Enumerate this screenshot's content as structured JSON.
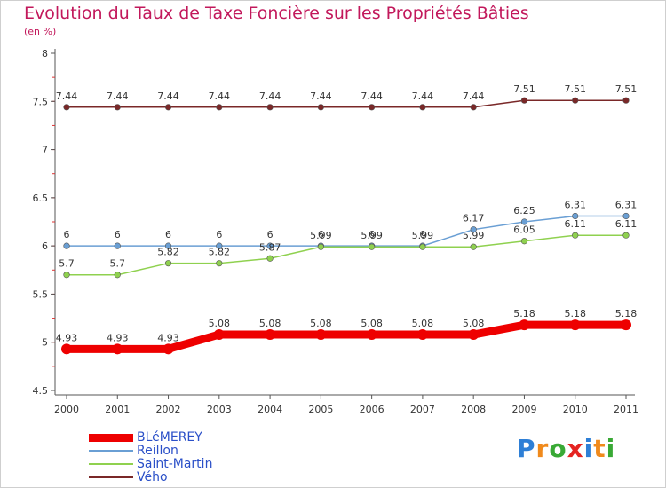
{
  "chart_data": {
    "type": "line",
    "title": "Evolution du Taux de Taxe Foncière sur les Propriétés Bâties",
    "subtitle": "(en %)",
    "xlabel": "",
    "ylabel": "",
    "ylim": [
      4.5,
      8
    ],
    "yticks": [
      "4.5",
      "5",
      "5.5",
      "6",
      "6.5",
      "7",
      "7.5",
      "8"
    ],
    "categories": [
      "2000",
      "2001",
      "2002",
      "2003",
      "2004",
      "2005",
      "2006",
      "2007",
      "2008",
      "2009",
      "2010",
      "2011"
    ],
    "series": [
      {
        "name": "Vého",
        "color": "#7a2828",
        "values": [
          7.44,
          7.44,
          7.44,
          7.44,
          7.44,
          7.44,
          7.44,
          7.44,
          7.44,
          7.51,
          7.51,
          7.51
        ],
        "labels": [
          "7.44",
          "7.44",
          "7.44",
          "7.44",
          "7.44",
          "7.44",
          "7.44",
          "7.44",
          "7.44",
          "7.51",
          "7.51",
          "7.51"
        ]
      },
      {
        "name": "Reillon",
        "color": "#6a9fd4",
        "values": [
          6,
          6,
          6,
          6,
          6,
          6,
          6,
          6,
          6.17,
          6.25,
          6.31,
          6.31
        ],
        "labels": [
          "6",
          "6",
          "6",
          "6",
          "6",
          "6",
          "6",
          "6",
          "6.17",
          "6.25",
          "6.31",
          "6.31"
        ]
      },
      {
        "name": "Saint-Martin",
        "color": "#8fd14f",
        "values": [
          5.7,
          5.7,
          5.82,
          5.82,
          5.87,
          5.99,
          5.99,
          5.99,
          5.99,
          6.05,
          6.11,
          6.11
        ],
        "labels": [
          "5.7",
          "5.7",
          "5.82",
          "5.82",
          "5.87",
          "5.99",
          "5.99",
          "5.99",
          "5.99",
          "6.05",
          "6.11",
          "6.11"
        ]
      },
      {
        "name": "BLéMEREY",
        "color": "#ee0000",
        "values": [
          4.93,
          4.93,
          4.93,
          5.08,
          5.08,
          5.08,
          5.08,
          5.08,
          5.08,
          5.18,
          5.18,
          5.18
        ],
        "labels": [
          "4.93",
          "4.93",
          "4.93",
          "5.08",
          "5.08",
          "5.08",
          "5.08",
          "5.08",
          "5.08",
          "5.18",
          "5.18",
          "5.18"
        ]
      }
    ],
    "legend": [
      {
        "name": "BLéMEREY",
        "color": "#ee0000"
      },
      {
        "name": "Reillon",
        "color": "#6a9fd4"
      },
      {
        "name": "Saint-Martin",
        "color": "#8fd14f"
      },
      {
        "name": "Vého",
        "color": "#7a2828"
      }
    ],
    "legend_position": "bottom-left"
  },
  "brand": {
    "text": "Proxiti",
    "letters": [
      {
        "ch": "P",
        "color": "#2e7fd6"
      },
      {
        "ch": "r",
        "color": "#f08a1c"
      },
      {
        "ch": "o",
        "color": "#39a935"
      },
      {
        "ch": "x",
        "color": "#e52421"
      },
      {
        "ch": "i",
        "color": "#2e7fd6"
      },
      {
        "ch": "t",
        "color": "#f08a1c"
      },
      {
        "ch": "i",
        "color": "#39a935"
      }
    ]
  }
}
